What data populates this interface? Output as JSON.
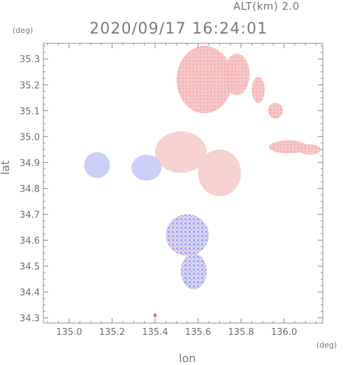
{
  "header": {
    "altitude_label": "ALT(km)  2.0",
    "timestamp": "2020/09/17 16:24:01"
  },
  "axes": {
    "x_label": "lon",
    "y_label": "lat",
    "x_unit": "(deg)",
    "y_unit": "(deg)",
    "x_range": [
      134.88,
      136.18
    ],
    "y_range": [
      34.28,
      35.36
    ],
    "x_ticks": [
      {
        "value": 135.0,
        "label": "135.0"
      },
      {
        "value": 135.2,
        "label": "135.2"
      },
      {
        "value": 135.4,
        "label": "135.4"
      },
      {
        "value": 135.6,
        "label": "135.6"
      },
      {
        "value": 135.8,
        "label": "135.8"
      },
      {
        "value": 136.0,
        "label": "136.0"
      }
    ],
    "y_ticks": [
      {
        "value": 34.3,
        "label": "34.3"
      },
      {
        "value": 34.4,
        "label": "34.4"
      },
      {
        "value": 34.5,
        "label": "34.5"
      },
      {
        "value": 34.6,
        "label": "34.6"
      },
      {
        "value": 34.7,
        "label": "34.7"
      },
      {
        "value": 34.8,
        "label": "34.8"
      },
      {
        "value": 34.9,
        "label": "34.9"
      },
      {
        "value": 35.0,
        "label": "35.0"
      },
      {
        "value": 35.1,
        "label": "35.1"
      },
      {
        "value": 35.2,
        "label": "35.2"
      },
      {
        "value": 35.3,
        "label": "35.3"
      }
    ]
  },
  "colors": {
    "frame": "#8c8c8c",
    "tick_text": "#6e6e6e",
    "approaching": "#9aa0f4",
    "approaching_light": "#c9ccf8",
    "receding": "#f3a6a6",
    "receding_light": "#f8cfcf",
    "receding_strong": "#ef6b6b",
    "approaching_strong": "#7077ee"
  },
  "echo_regions": [
    {
      "name": "north-receding-cluster",
      "lon": 135.63,
      "lat": 35.22,
      "rlon": 0.13,
      "rlat": 0.13,
      "color": "receding"
    },
    {
      "name": "north-receding-cluster-ne",
      "lon": 135.78,
      "lat": 35.24,
      "rlon": 0.06,
      "rlat": 0.08,
      "color": "receding"
    },
    {
      "name": "north-receding-lobe-e",
      "lon": 135.88,
      "lat": 35.18,
      "rlon": 0.03,
      "rlat": 0.05,
      "color": "receding"
    },
    {
      "name": "receding-spot-ne",
      "lon": 135.96,
      "lat": 35.1,
      "rlon": 0.035,
      "rlat": 0.03,
      "color": "receding"
    },
    {
      "name": "receding-east-band",
      "lon": 136.02,
      "lat": 34.96,
      "rlon": 0.09,
      "rlat": 0.025,
      "color": "receding"
    },
    {
      "name": "receding-east-band-2",
      "lon": 136.12,
      "lat": 34.95,
      "rlon": 0.05,
      "rlat": 0.02,
      "color": "receding"
    },
    {
      "name": "central-receding-cluster",
      "lon": 135.52,
      "lat": 34.94,
      "rlon": 0.12,
      "rlat": 0.08,
      "color": "receding_light"
    },
    {
      "name": "central-receding-cluster-e",
      "lon": 135.7,
      "lat": 34.86,
      "rlon": 0.1,
      "rlat": 0.09,
      "color": "receding_light"
    },
    {
      "name": "west-approaching-patch",
      "lon": 135.13,
      "lat": 34.89,
      "rlon": 0.06,
      "rlat": 0.05,
      "color": "approaching_light"
    },
    {
      "name": "approaching-patch-center-w",
      "lon": 135.36,
      "lat": 34.88,
      "rlon": 0.07,
      "rlat": 0.05,
      "color": "approaching_light"
    },
    {
      "name": "mixed-south-cluster",
      "lon": 135.55,
      "lat": 34.62,
      "rlon": 0.1,
      "rlat": 0.08,
      "color": "approaching"
    },
    {
      "name": "mixed-south-cluster-tail",
      "lon": 135.58,
      "lat": 34.48,
      "rlon": 0.06,
      "rlat": 0.07,
      "color": "approaching"
    },
    {
      "name": "receding-dot-south",
      "lon": 135.4,
      "lat": 34.31,
      "rlon": 0.008,
      "rlat": 0.008,
      "color": "receding_strong"
    }
  ]
}
